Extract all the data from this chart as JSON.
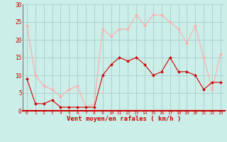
{
  "x": [
    0,
    1,
    2,
    3,
    4,
    5,
    6,
    7,
    8,
    9,
    10,
    11,
    12,
    13,
    14,
    15,
    16,
    17,
    18,
    19,
    20,
    21,
    22,
    23
  ],
  "wind_avg": [
    9,
    2,
    2,
    3,
    1,
    1,
    1,
    1,
    1,
    10,
    13,
    15,
    14,
    15,
    13,
    10,
    11,
    15,
    11,
    11,
    10,
    6,
    8,
    8
  ],
  "wind_gust": [
    24,
    10,
    7,
    6,
    4,
    6,
    7,
    1,
    2,
    23,
    21,
    23,
    23,
    27,
    24,
    27,
    27,
    25,
    23,
    19,
    24,
    15,
    6,
    16
  ],
  "xlabel": "Vent moyen/en rafales ( km/h )",
  "ylim": [
    0,
    30
  ],
  "yticks": [
    0,
    5,
    10,
    15,
    20,
    25,
    30
  ],
  "color_avg": "#cc0000",
  "color_gust": "#ffaaaa",
  "bg_color": "#cceee8",
  "grid_color": "#aacccc",
  "tick_label_color": "#cc0000",
  "xlabel_color": "#cc0000",
  "spine_left_color": "#777777",
  "spine_bottom_color": "#cc0000"
}
